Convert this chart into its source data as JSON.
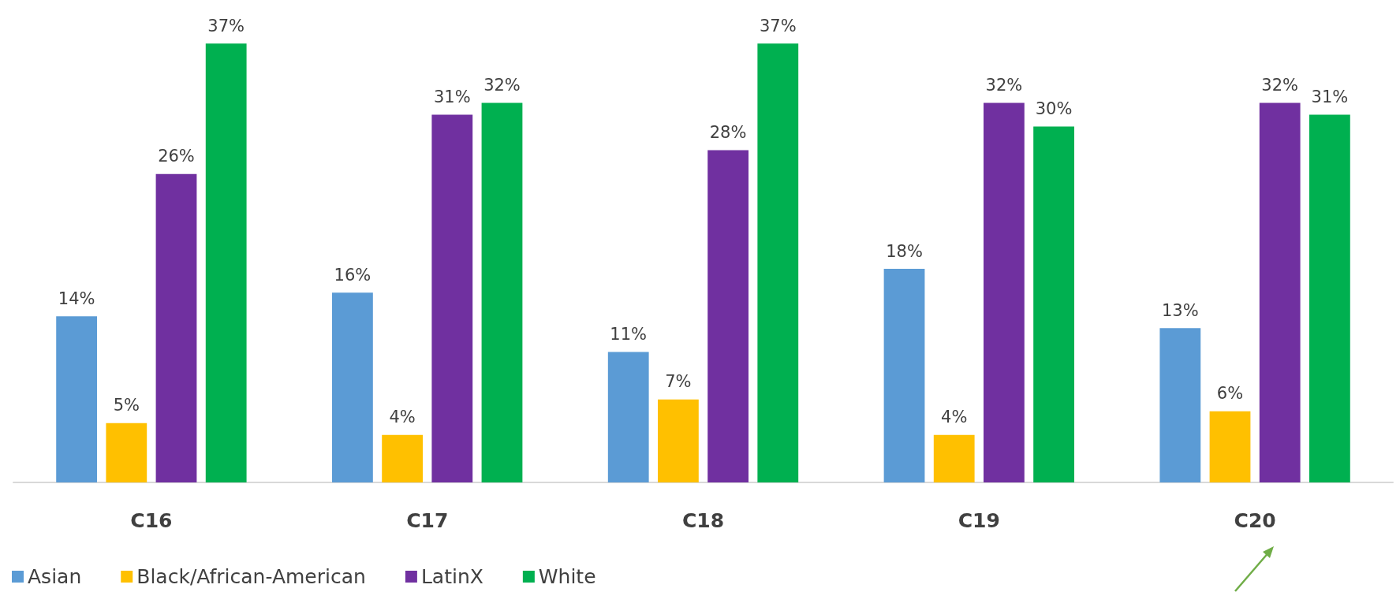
{
  "chart_data": {
    "type": "bar",
    "categories": [
      "C16",
      "C17",
      "C18",
      "C19",
      "C20"
    ],
    "series": [
      {
        "name": "Asian",
        "color": "#5b9bd5",
        "values": [
          14,
          16,
          11,
          18,
          13
        ],
        "value_labels": [
          "14%",
          "16%",
          "11%",
          "18%",
          "13%"
        ]
      },
      {
        "name": "Black/African-American",
        "color": "#ffc000",
        "values": [
          5,
          4,
          7,
          4,
          6
        ],
        "value_labels": [
          "5%",
          "4%",
          "7%",
          "4%",
          "6%"
        ]
      },
      {
        "name": "LatinX",
        "color": "#7030a0",
        "values": [
          26,
          31,
          28,
          32,
          32
        ],
        "value_labels": [
          "26%",
          "31%",
          "28%",
          "32%",
          "32%"
        ]
      },
      {
        "name": "White",
        "color": "#00b050",
        "values": [
          37,
          32,
          37,
          30,
          31
        ],
        "value_labels": [
          "37%",
          "32%",
          "37%",
          "30%",
          "31%"
        ]
      }
    ],
    "grid": false,
    "legend": "bottom left"
  }
}
